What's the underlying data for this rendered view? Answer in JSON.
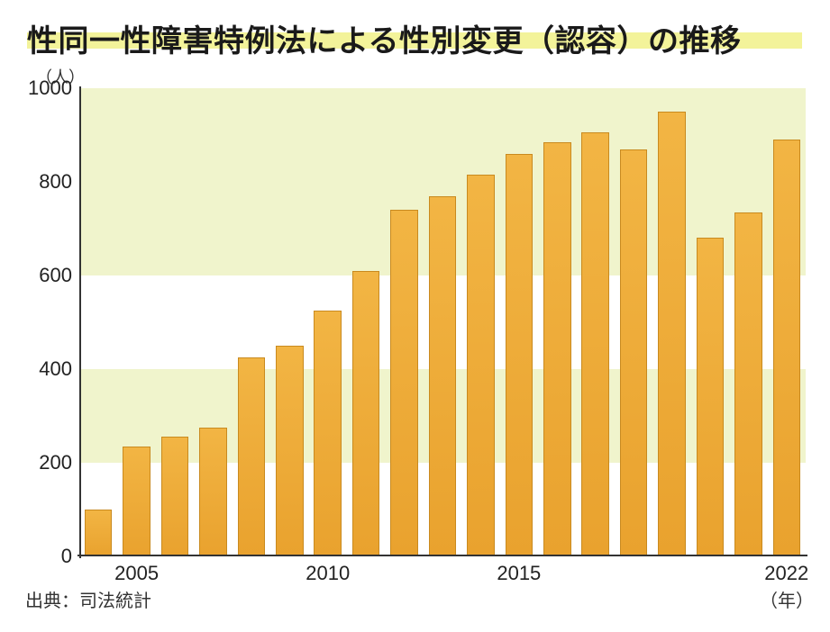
{
  "chart": {
    "type": "bar",
    "title": "性同一性障害特例法による性別変更（認容）の推移",
    "title_highlight_color": "#f3f39a",
    "title_fontsize": 34,
    "y_unit_label": "（人）",
    "x_unit_label": "（年）",
    "source_label": "出典：司法統計",
    "background_color": "#ffffff",
    "band_color": "#f0f4cc",
    "axis_color": "#333333",
    "bar_fill_top": "#f2b544",
    "bar_fill_bottom": "#e9a22e",
    "bar_border": "#c98a1f",
    "bar_width_ratio": 0.72,
    "ylim": [
      0,
      1000
    ],
    "y_ticks": [
      0,
      200,
      400,
      600,
      800,
      1000
    ],
    "y_bands": [
      [
        200,
        400
      ],
      [
        600,
        800
      ],
      [
        800,
        1000
      ]
    ],
    "x_ticks": [
      {
        "year": 2005,
        "label": "2005"
      },
      {
        "year": 2010,
        "label": "2010"
      },
      {
        "year": 2015,
        "label": "2015"
      },
      {
        "year": 2022,
        "label": "2022"
      }
    ],
    "years": [
      2004,
      2005,
      2006,
      2007,
      2008,
      2009,
      2010,
      2011,
      2012,
      2013,
      2014,
      2015,
      2016,
      2017,
      2018,
      2019,
      2020,
      2021,
      2022
    ],
    "values": [
      100,
      235,
      255,
      275,
      425,
      450,
      525,
      610,
      740,
      770,
      815,
      860,
      885,
      905,
      870,
      950,
      680,
      735,
      890
    ],
    "label_fontsize": 22
  }
}
